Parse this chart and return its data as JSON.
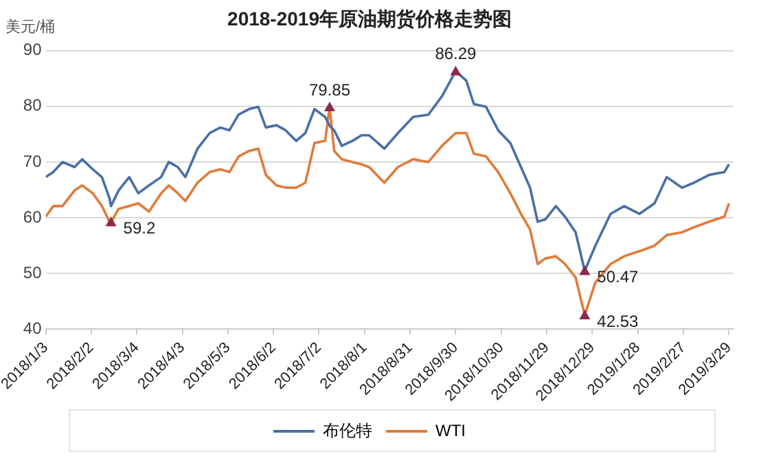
{
  "chart_data": {
    "type": "line",
    "title": "2018-2019年原油期货价格走势图",
    "ylabel": "美元/桶",
    "x": [
      "2018-01-03",
      "2018-01-08",
      "2018-01-14",
      "2018-01-22",
      "2018-01-27",
      "2018-02-03",
      "2018-02-09",
      "2018-02-14",
      "2018-02-15",
      "2018-02-20",
      "2018-02-27",
      "2018-03-05",
      "2018-03-12",
      "2018-03-20",
      "2018-03-25",
      "2018-03-31",
      "2018-04-05",
      "2018-04-13",
      "2018-04-21",
      "2018-04-28",
      "2018-05-04",
      "2018-05-10",
      "2018-05-17",
      "2018-05-23",
      "2018-05-28",
      "2018-06-04",
      "2018-06-10",
      "2018-06-17",
      "2018-06-23",
      "2018-06-29",
      "2018-07-06",
      "2018-07-09",
      "2018-07-12",
      "2018-07-17",
      "2018-07-24",
      "2018-07-30",
      "2018-08-04",
      "2018-08-14",
      "2018-08-23",
      "2018-09-02",
      "2018-09-12",
      "2018-09-21",
      "2018-09-30",
      "2018-10-07",
      "2018-10-12",
      "2018-10-20",
      "2018-10-28",
      "2018-11-05",
      "2018-11-12",
      "2018-11-18",
      "2018-11-23",
      "2018-11-28",
      "2018-12-05",
      "2018-12-11",
      "2018-12-18",
      "2018-12-24",
      "2018-12-31",
      "2019-01-10",
      "2019-01-19",
      "2019-01-29",
      "2019-02-08",
      "2019-02-16",
      "2019-02-26",
      "2019-03-06",
      "2019-03-16",
      "2019-03-26",
      "2019-03-29"
    ],
    "series": [
      {
        "name": "布伦特",
        "color": "#4a6fa5",
        "values": [
          67.3,
          68.2,
          70,
          69.1,
          70.5,
          68.7,
          67.3,
          63.5,
          62.1,
          64.9,
          67.3,
          64.4,
          65.8,
          67.3,
          70,
          69.1,
          67.3,
          72.4,
          75.2,
          76.2,
          75.7,
          78.5,
          79.5,
          79.9,
          76.2,
          76.6,
          75.7,
          73.8,
          75.2,
          79.5,
          78.1,
          76.5,
          75.7,
          72.9,
          73.8,
          74.8,
          74.8,
          72.4,
          75.2,
          78.1,
          78.5,
          81.8,
          86.29,
          84.6,
          80.4,
          79.9,
          75.7,
          73.4,
          69.1,
          65.4,
          59.3,
          59.7,
          62.1,
          60.2,
          57.4,
          50.47,
          55,
          60.7,
          62.1,
          60.7,
          62.6,
          67.3,
          65.4,
          66.3,
          67.7,
          68.2,
          69.6
        ]
      },
      {
        "name": "WTI",
        "color": "#e07b39",
        "values": [
          60.2,
          62.1,
          62.1,
          64.9,
          65.8,
          64.4,
          62.1,
          59.3,
          59.2,
          61.6,
          62.1,
          62.6,
          61.1,
          64.4,
          65.8,
          64.4,
          63,
          66.3,
          68.2,
          68.7,
          68.2,
          71,
          72,
          72.4,
          67.7,
          65.8,
          65.4,
          65.4,
          66.3,
          73.4,
          73.8,
          79.85,
          72,
          70.5,
          70,
          69.6,
          69.1,
          66.3,
          69.1,
          70.5,
          70,
          72.9,
          75.2,
          75.2,
          71.5,
          71,
          68.2,
          64.4,
          60.7,
          57.9,
          51.7,
          52.7,
          53.1,
          51.7,
          49.3,
          42.53,
          48.4,
          51.7,
          53.1,
          54,
          55,
          56.9,
          57.4,
          58.3,
          59.3,
          60.2,
          62.6
        ]
      }
    ],
    "xlim": [
      "2018-01-03",
      "2019-04-01"
    ],
    "xticks": [
      {
        "value": "2018-01-03",
        "label": "2018/1/3"
      },
      {
        "value": "2018-02-02",
        "label": "2018/2/2"
      },
      {
        "value": "2018-03-04",
        "label": "2018/3/4"
      },
      {
        "value": "2018-04-03",
        "label": "2018/4/3"
      },
      {
        "value": "2018-05-03",
        "label": "2018/5/3"
      },
      {
        "value": "2018-06-02",
        "label": "2018/6/2"
      },
      {
        "value": "2018-07-02",
        "label": "2018/7/2"
      },
      {
        "value": "2018-08-01",
        "label": "2018/8/1"
      },
      {
        "value": "2018-08-31",
        "label": "2018/8/31"
      },
      {
        "value": "2018-09-30",
        "label": "2018/9/30"
      },
      {
        "value": "2018-10-30",
        "label": "2018/10/30"
      },
      {
        "value": "2018-11-29",
        "label": "2018/11/29"
      },
      {
        "value": "2018-12-29",
        "label": "2018/12/29"
      },
      {
        "value": "2019-01-28",
        "label": "2019/1/28"
      },
      {
        "value": "2019-02-27",
        "label": "2019/2/27"
      },
      {
        "value": "2019-03-29",
        "label": "2019/3/29"
      }
    ],
    "ylim": [
      40,
      90
    ],
    "yticks": [
      40,
      50,
      60,
      70,
      80,
      90
    ],
    "grid": "y",
    "legend": "bottom",
    "marker": "none",
    "line_style": "solid",
    "annotations": [
      {
        "text": "59.2",
        "x": "2018-02-15",
        "y": 59.2
      },
      {
        "text": "79.85",
        "x": "2018-07-09",
        "y": 79.85
      },
      {
        "text": "86.29",
        "x": "2018-09-30",
        "y": 86.29
      },
      {
        "text": "50.47",
        "x": "2018-12-24",
        "y": 50.47
      },
      {
        "text": "42.53",
        "x": "2018-12-24",
        "y": 42.53
      }
    ]
  }
}
